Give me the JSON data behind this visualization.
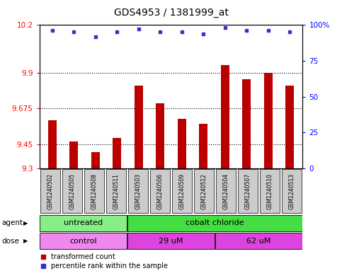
{
  "title": "GDS4953 / 1381999_at",
  "samples": [
    "GSM1240502",
    "GSM1240505",
    "GSM1240508",
    "GSM1240511",
    "GSM1240503",
    "GSM1240506",
    "GSM1240509",
    "GSM1240512",
    "GSM1240504",
    "GSM1240507",
    "GSM1240510",
    "GSM1240513"
  ],
  "bar_values": [
    9.6,
    9.47,
    9.4,
    9.49,
    9.82,
    9.71,
    9.61,
    9.58,
    9.95,
    9.86,
    9.9,
    9.82
  ],
  "dot_values": [
    96,
    95,
    92,
    95,
    97,
    95,
    95,
    94,
    98,
    96,
    96,
    95
  ],
  "ylim_left": [
    9.3,
    10.2
  ],
  "ylim_right": [
    0,
    100
  ],
  "yticks_left": [
    9.3,
    9.45,
    9.675,
    9.9,
    10.2
  ],
  "ytick_labels_left": [
    "9.3",
    "9.45",
    "9.675",
    "9.9",
    "10.2"
  ],
  "yticks_right": [
    0,
    25,
    50,
    75,
    100
  ],
  "ytick_labels_right": [
    "0",
    "25",
    "50",
    "75",
    "100%"
  ],
  "hlines": [
    9.45,
    9.675,
    9.9
  ],
  "bar_color": "#bb0000",
  "dot_color": "#3333cc",
  "agent_groups": [
    {
      "label": "untreated",
      "start": 0,
      "end": 4,
      "color": "#88ee88"
    },
    {
      "label": "cobalt chloride",
      "start": 4,
      "end": 12,
      "color": "#44dd44"
    }
  ],
  "dose_groups": [
    {
      "label": "control",
      "start": 0,
      "end": 4,
      "color": "#ee88ee"
    },
    {
      "label": "29 uM",
      "start": 4,
      "end": 8,
      "color": "#dd44dd"
    },
    {
      "label": "62 uM",
      "start": 8,
      "end": 12,
      "color": "#dd44dd"
    }
  ],
  "legend_bar_label": "transformed count",
  "legend_dot_label": "percentile rank within the sample",
  "agent_label": "agent",
  "dose_label": "dose",
  "bar_width": 0.4,
  "sample_box_color": "#cccccc",
  "title_fontsize": 10,
  "tick_fontsize": 7.5,
  "row_label_fontsize": 7.5,
  "row_content_fontsize": 8,
  "legend_fontsize": 7
}
